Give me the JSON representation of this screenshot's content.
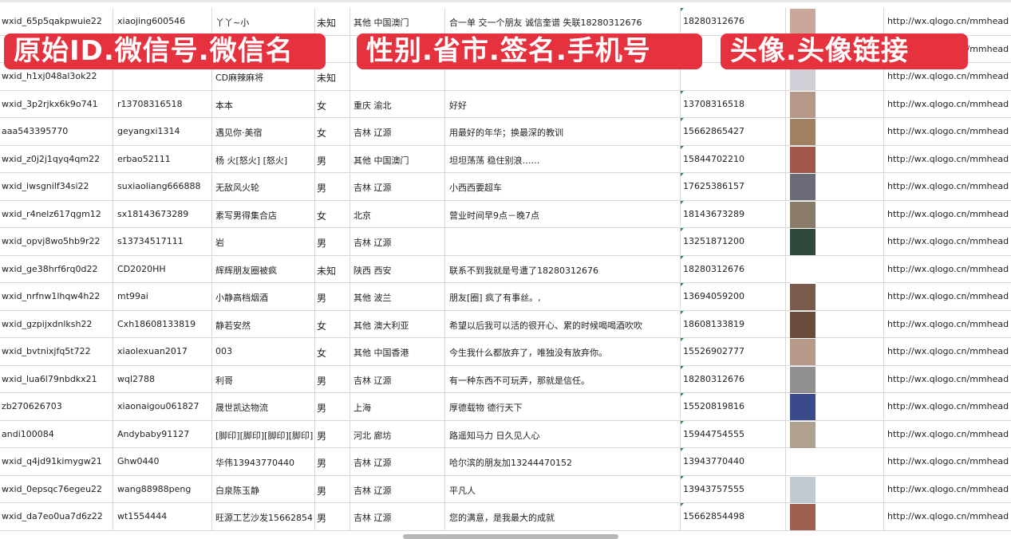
{
  "overlays": [
    "原始ID.微信号.微信名",
    "性别.省市.签名.手机号",
    "头像.头像链接"
  ],
  "colors": {
    "overlay": "#e6323e",
    "grid": "#d8d8d8",
    "text": "#222222"
  },
  "rows": [
    [
      "wxid_65p5qakpwuie22",
      "xiaojing600546",
      "丫丫~小",
      "未知",
      "其他 中国澳门",
      "合一单 交一个朋友 诚信奎谱 失联18280312676",
      "18280312676",
      "http://wx.qlogo.cn/mmhead"
    ],
    [
      "",
      "",
      "",
      "",
      "",
      "",
      "",
      "http://wx.qlogo.cn/mmhead"
    ],
    [
      "wxid_h1xj048al3ok22",
      "",
      "CD麻辣麻将",
      "未知",
      "",
      "",
      "",
      "http://wx.qlogo.cn/mmhead"
    ],
    [
      "wxid_3p2rjkx6k9o741",
      "r13708316518",
      "本本",
      "女",
      "重庆 渝北",
      "好好",
      "13708316518",
      "http://wx.qlogo.cn/mmhead"
    ],
    [
      "aaa543395770",
      "geyangxi1314",
      "遇见你·美宿",
      "女",
      "吉林 辽源",
      "用最好的年华；换最深的教训",
      "15662865427",
      "http://wx.qlogo.cn/mmhead"
    ],
    [
      "wxid_z0j2j1qyq4qm22",
      "erbao52111",
      "杨 火[怒火] [怒火]",
      "男",
      "其他 中国澳门",
      "坦坦荡荡 稳住别浪……",
      "15844702210",
      "http://wx.qlogo.cn/mmhead"
    ],
    [
      "wxid_iwsgnilf34si22",
      "suxiaoliang666888",
      "无敌风火轮",
      "男",
      "吉林 辽源",
      "小西西要超车",
      "17625386157",
      "http://wx.qlogo.cn/mmhead"
    ],
    [
      "wxid_r4nelz617qgm12",
      "sx18143673289",
      "素写男得集合店",
      "女",
      "北京",
      "营业时间早9点－晚7点",
      "18143673289",
      "http://wx.qlogo.cn/mmhead"
    ],
    [
      "wxid_opvj8wo5hb9r22",
      "s13734517111",
      "岩",
      "男",
      "吉林 辽源",
      "",
      "13251871200",
      "http://wx.qlogo.cn/mmhead"
    ],
    [
      "wxid_ge38hrf6rq0d22",
      "CD2020HH",
      "辉辉朋友圈被疯",
      "未知",
      "陕西 西安",
      "联系不到我就是号遭了18280312676",
      "18280312676",
      "http://wx.qlogo.cn/mmhead"
    ],
    [
      "wxid_nrfnw1lhqw4h22",
      "mt99ai",
      "小静高档烟酒",
      "男",
      "其他 波兰",
      "朋友[圈] 疯了有事丝。,",
      "13694059200",
      "http://wx.qlogo.cn/mmhead"
    ],
    [
      "wxid_gzpijxdnlksh22",
      "Cxh18608133819",
      "静若安然",
      "女",
      "其他 澳大利亚",
      "希望以后我可以活的很开心、累的时候喝喝酒吹吹",
      "18608133819",
      "http://wx.qlogo.cn/mmhead"
    ],
    [
      "wxid_bvtnixjfq5t722",
      "xiaolexuan2017",
      "003",
      "女",
      "其他 中国香港",
      "今生我什么都放弃了，唯独没有放弃你。",
      "15526902777",
      "http://wx.qlogo.cn/mmhead"
    ],
    [
      "wxid_lua6l79nbdkx21",
      "wql2788",
      "利哥",
      "男",
      "吉林 辽源",
      "有一种东西不可玩弄，那就是信任。",
      "18280312676",
      "http://wx.qlogo.cn/mmhead"
    ],
    [
      "zb270626703",
      "xiaonaigou061827",
      "晟世凯达物流",
      "男",
      "上海",
      "厚德载物 德行天下",
      "15520819816",
      "http://wx.qlogo.cn/mmhead"
    ],
    [
      "andi100084",
      "Andybaby91127",
      "[脚印][脚印][脚印][脚印]",
      "男",
      "河北 廊坊",
      "路遥知马力 日久见人心",
      "15944754555",
      "http://wx.qlogo.cn/mmhead"
    ],
    [
      "wxid_q4jd91kimygw21",
      "Ghw0440",
      "华伟13943770440",
      "男",
      "吉林 辽源",
      "哈尔滨的朋友加13244470152",
      "13943770440",
      "http://wx.qlogo.cn/mmhead"
    ],
    [
      "wxid_0epsqc76egeu22",
      "wang88988peng",
      "白泉陈玉静",
      "男",
      "吉林 辽源",
      "平凡人",
      "13943757555",
      "http://wx.qlogo.cn/mmhead"
    ],
    [
      "wxid_da7eo0ua7d6z22",
      "wt1554444",
      "旺源工艺沙发15662854",
      "男",
      "吉林 辽源",
      "您的满意，是我最大的成就",
      "15662854498",
      "http://wx.qlogo.cn/mmhead"
    ]
  ],
  "avatar_colors": [
    "#c9a79a",
    "#9aa8c8",
    "#d0d0d8",
    "#b59888",
    "#a08060",
    "#a0584a",
    "#6a6a78",
    "#8a7a6a",
    "#2f4a3a",
    "#ffffff",
    "#7a5a4a",
    "#6a4a3a",
    "#b89888",
    "#909090",
    "#3a4a8a",
    "#b0a090",
    "#ffffff",
    "#c0c8d0",
    "#a06050"
  ]
}
